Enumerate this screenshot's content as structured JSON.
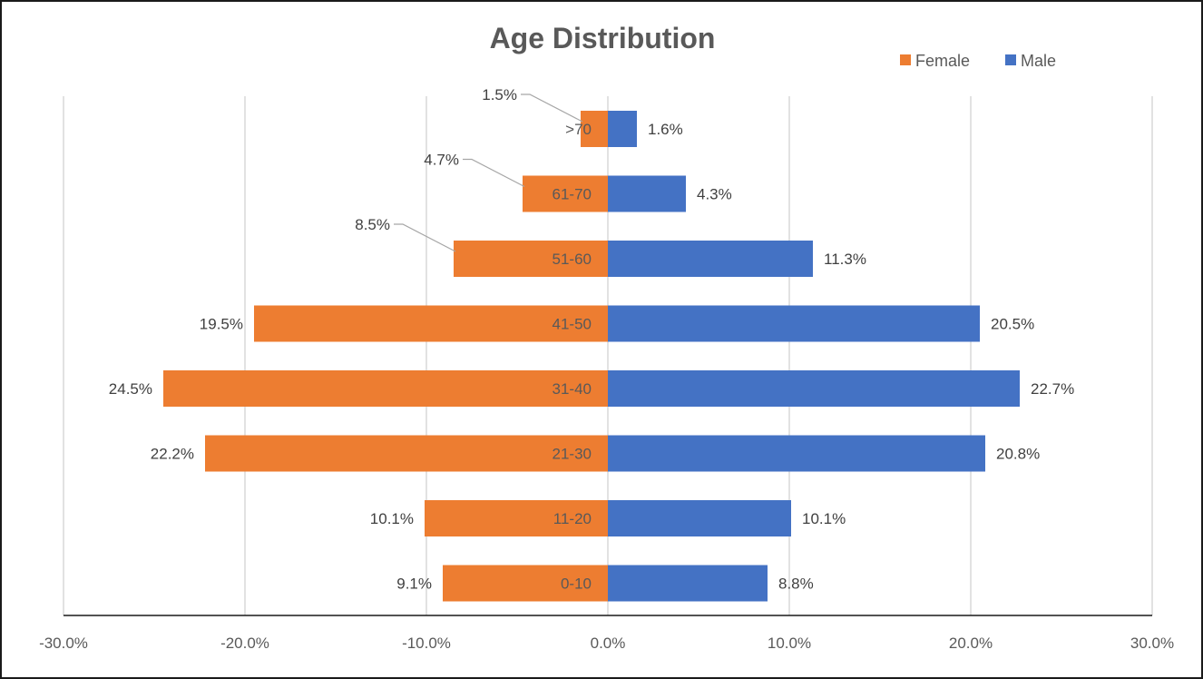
{
  "chart_data": {
    "type": "bar",
    "orientation": "horizontal",
    "title": "Age Distribution",
    "categories": [
      ">70",
      "61-70",
      "51-60",
      "41-50",
      "31-40",
      "21-30",
      "11-20",
      "0-10"
    ],
    "series": [
      {
        "name": "Female",
        "color": "#ED7D31",
        "values": [
          -1.5,
          -4.7,
          -8.5,
          -19.5,
          -24.5,
          -22.2,
          -10.1,
          -9.1
        ],
        "labels": [
          "1.5%",
          "4.7%",
          "8.5%",
          "19.5%",
          "24.5%",
          "22.2%",
          "10.1%",
          "9.1%"
        ]
      },
      {
        "name": "Male",
        "color": "#4472C4",
        "values": [
          1.6,
          4.3,
          11.3,
          20.5,
          22.7,
          20.8,
          10.1,
          8.8
        ],
        "labels": [
          "1.6%",
          "4.3%",
          "11.3%",
          "20.5%",
          "22.7%",
          "20.8%",
          "10.1%",
          "8.8%"
        ]
      }
    ],
    "xlim": [
      -30,
      30
    ],
    "x_ticks": [
      -30,
      -20,
      -10,
      0,
      10,
      20,
      30
    ],
    "x_tick_labels": [
      "-30.0%",
      "-20.0%",
      "-10.0%",
      "0.0%",
      "10.0%",
      "20.0%",
      "30.0%"
    ],
    "grid": "vertical",
    "legend_position": "top-right"
  }
}
